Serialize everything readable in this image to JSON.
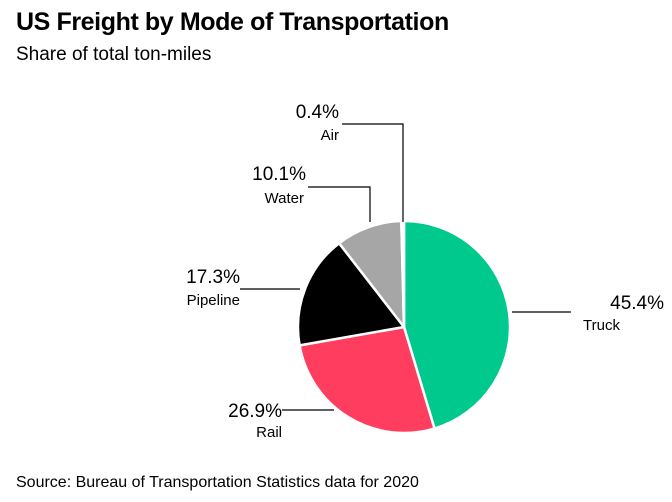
{
  "title": "US Freight by Mode of Transportation",
  "subtitle": "Share of total ton-miles",
  "source": "Source: Bureau of Transportation Statistics data for 2020",
  "chart_data": {
    "type": "pie",
    "title": "US Freight by Mode of Transportation",
    "subtitle": "Share of total ton-miles",
    "unit": "%",
    "slices": [
      {
        "label": "Truck",
        "value": 45.4,
        "display": "45.4%",
        "color": "#00c98d"
      },
      {
        "label": "Rail",
        "value": 26.9,
        "display": "26.9%",
        "color": "#ff3e5f"
      },
      {
        "label": "Pipeline",
        "value": 17.3,
        "display": "17.3%",
        "color": "#000000"
      },
      {
        "label": "Water",
        "value": 10.1,
        "display": "10.1%",
        "color": "#a6a6a6"
      },
      {
        "label": "Air",
        "value": 0.4,
        "display": "0.4%",
        "color": "#a6a6a6"
      }
    ],
    "start_angle": "12 o'clock, clockwise",
    "legend": "none (callout labels)",
    "source": "Source: Bureau of Transportation Statistics data for 2020"
  }
}
